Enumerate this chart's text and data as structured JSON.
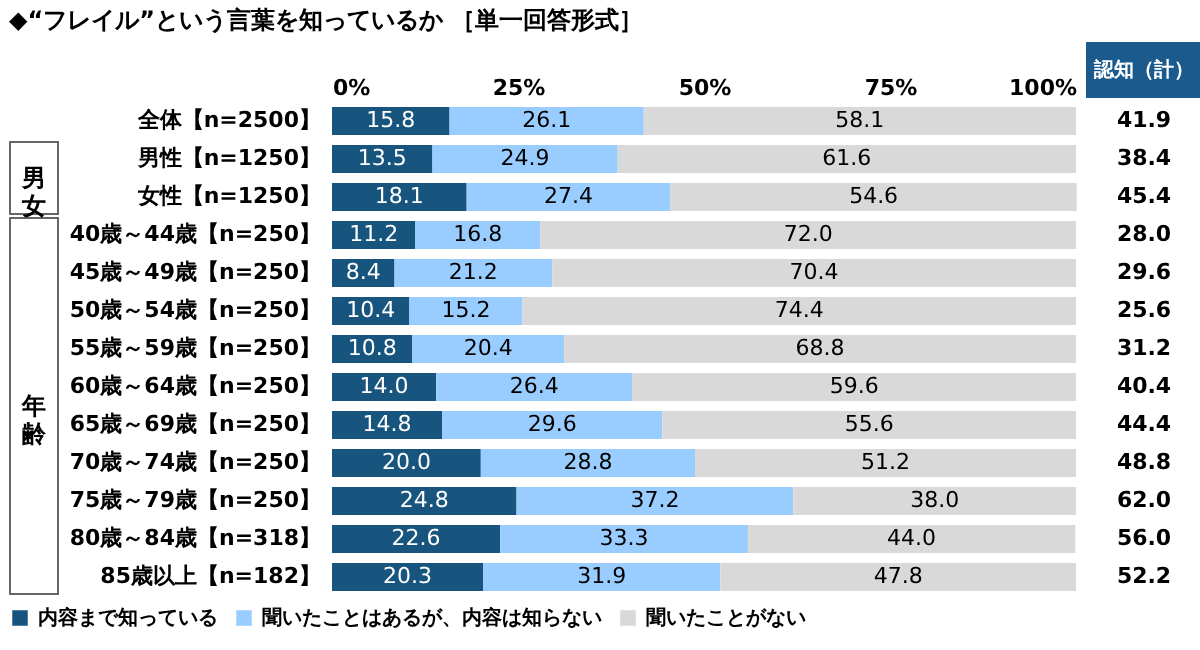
{
  "chart_data": {
    "type": "bar",
    "orientation": "horizontal",
    "stacked": true,
    "title": "◆“フレイル”という言葉を知っているか ［単一回答形式］",
    "categories": [
      "全体【n=2500】",
      "男性【n=1250】",
      "女性【n=1250】",
      "40歳～44歳【n=250】",
      "45歳～49歳【n=250】",
      "50歳～54歳【n=250】",
      "55歳～59歳【n=250】",
      "60歳～64歳【n=250】",
      "65歳～69歳【n=250】",
      "70歳～74歳【n=250】",
      "75歳～79歳【n=250】",
      "80歳～84歳【n=318】",
      "85歳以上【n=182】"
    ],
    "series": [
      {
        "name": "内容まで知っている",
        "color": "#17557f",
        "values": [
          15.8,
          13.5,
          18.1,
          11.2,
          8.4,
          10.4,
          10.8,
          14.0,
          14.8,
          20.0,
          24.8,
          22.6,
          20.3
        ],
        "value_labels": [
          "15.8",
          "13.5",
          "18.1",
          "11.2",
          "8.4",
          "10.4",
          "10.8",
          "14.0",
          "14.8",
          "20.0",
          "24.8",
          "22.6",
          "20.3"
        ]
      },
      {
        "name": "聞いたことはあるが、内容は知らない",
        "color": "#99ccff",
        "values": [
          26.1,
          24.9,
          27.4,
          16.8,
          21.2,
          15.2,
          20.4,
          26.4,
          29.6,
          28.8,
          37.2,
          33.3,
          31.9
        ],
        "value_labels": [
          "26.1",
          "24.9",
          "27.4",
          "16.8",
          "21.2",
          "15.2",
          "20.4",
          "26.4",
          "29.6",
          "28.8",
          "37.2",
          "33.3",
          "31.9"
        ]
      },
      {
        "name": "聞いたことがない",
        "color": "#d9d9d9",
        "values": [
          58.1,
          61.6,
          54.6,
          72.0,
          70.4,
          74.4,
          68.8,
          59.6,
          55.6,
          51.2,
          38.0,
          44.0,
          47.8
        ],
        "value_labels": [
          "58.1",
          "61.6",
          "54.6",
          "72.0",
          "70.4",
          "74.4",
          "68.8",
          "59.6",
          "55.6",
          "51.2",
          "38.0",
          "44.0",
          "47.8"
        ]
      }
    ],
    "xlim": [
      0,
      100
    ],
    "xticks": [
      {
        "value": 0,
        "label": "0%"
      },
      {
        "value": 25,
        "label": "25%"
      },
      {
        "value": 50,
        "label": "50%"
      },
      {
        "value": 75,
        "label": "75%"
      },
      {
        "value": 100,
        "label": "100%"
      }
    ],
    "annotations": [
      "認知（計）",
      "男女",
      "年齢",
      "41.9",
      "38.4",
      "45.4",
      "28.0",
      "29.6",
      "25.6",
      "31.2",
      "40.4",
      "44.4",
      "48.8",
      "62.0",
      "56.0",
      "52.2"
    ],
    "legend": "bottom"
  }
}
